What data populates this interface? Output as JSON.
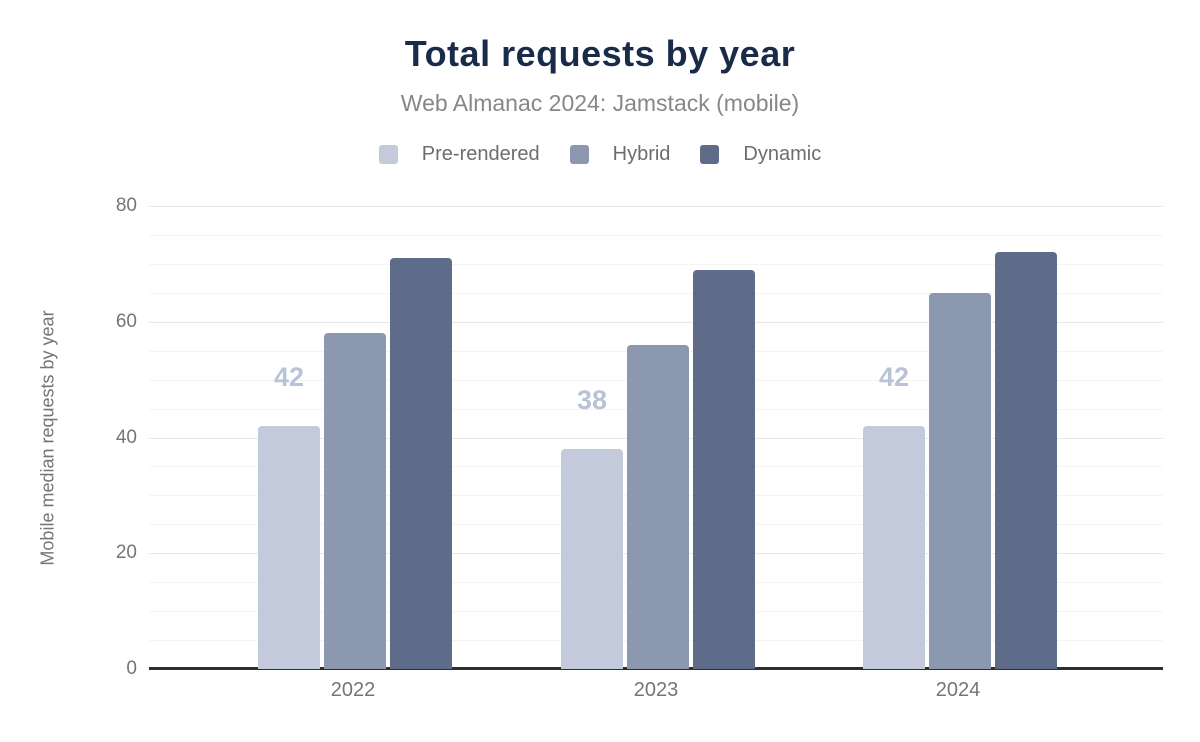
{
  "header": {
    "title": "Total requests by year",
    "subtitle": "Web Almanac 2024: Jamstack (mobile)"
  },
  "chart_data": {
    "type": "bar",
    "title": "Total requests by year",
    "subtitle": "Web Almanac 2024: Jamstack (mobile)",
    "categories": [
      "2022",
      "2023",
      "2024"
    ],
    "series": [
      {
        "name": "Pre-rendered",
        "color": "#c3cbdb",
        "values": [
          42,
          38,
          42
        ]
      },
      {
        "name": "Hybrid",
        "color": "#8c98b0",
        "values": [
          58,
          56,
          65
        ]
      },
      {
        "name": "Dynamic",
        "color": "#5e6c89",
        "values": [
          71,
          69,
          72
        ]
      }
    ],
    "data_labels": {
      "labeled_series": "Pre-rendered",
      "values": [
        "42",
        "38",
        "42"
      ],
      "color": "#b9c3d6"
    },
    "xlabel": "",
    "ylabel": "Mobile median requests by year",
    "ylim": [
      0,
      80
    ],
    "yticks": [
      0,
      20,
      40,
      60,
      80
    ],
    "minor_gridline_step": 5,
    "grid": "on",
    "legend_position": "top"
  },
  "colors": {
    "title": "#1a2b49",
    "subtitle": "#878787",
    "axis_text": "#757575",
    "legend_text": "#6d6d6d",
    "major_gridline": "#e7e7e7",
    "minor_gridline": "#f4f4f4",
    "baseline": "#2e2e2e"
  }
}
